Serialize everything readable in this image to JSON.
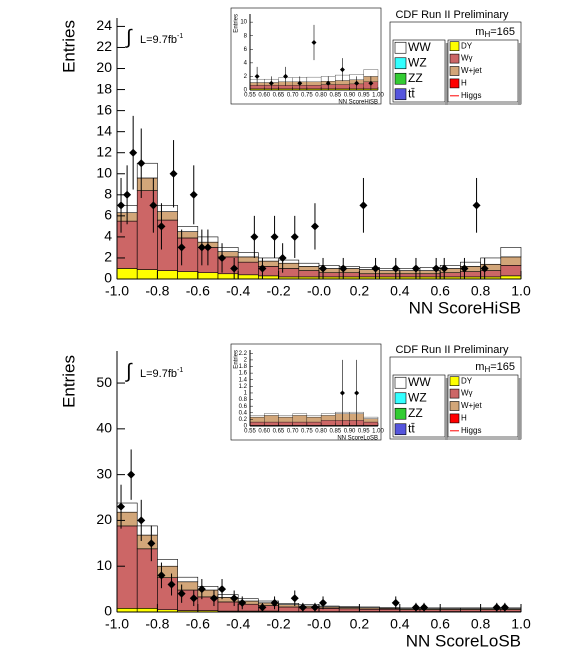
{
  "chart_data": [
    {
      "type": "histogram",
      "xlabel": "NN ScoreHiSB",
      "ylabel": "Entries",
      "header": "CDF Run II Preliminary",
      "mass_label": {
        "symbol": "m",
        "subscript": "H",
        "rest": "=165"
      },
      "lumi_label": {
        "integral": "∫",
        "text": "L=9.7fb",
        "superscript": "-1"
      },
      "xlim": [
        -1,
        1
      ],
      "ylim": [
        0,
        24.8
      ],
      "xticks": [
        {
          "value": -1,
          "label": "-1.0"
        },
        {
          "value": -0.8,
          "label": "-0.8"
        },
        {
          "value": -0.6,
          "label": "-0.6"
        },
        {
          "value": -0.4,
          "label": "-0.4"
        },
        {
          "value": -0.2,
          "label": "-0.2"
        },
        {
          "value": 0,
          "label": "-0.0"
        },
        {
          "value": 0.2,
          "label": "0.2"
        },
        {
          "value": 0.4,
          "label": "0.4"
        },
        {
          "value": 0.6,
          "label": "0.6"
        },
        {
          "value": 0.8,
          "label": "0.8"
        },
        {
          "value": 1,
          "label": "1.0"
        }
      ],
      "yticks": [
        0,
        2,
        4,
        6,
        8,
        10,
        12,
        14,
        16,
        18,
        20,
        22,
        24
      ],
      "bins": [
        -1,
        -0.9,
        -0.8,
        -0.7,
        -0.6,
        -0.5,
        -0.4,
        -0.3,
        -0.2,
        -0.1,
        0,
        0.1,
        0.2,
        0.3,
        0.4,
        0.5,
        0.6,
        0.7,
        0.8,
        0.9,
        1
      ],
      "series": [
        {
          "color": "#ffff00",
          "values": [
            1.0,
            0.9,
            0.8,
            0.7,
            0.6,
            0.5,
            0.4,
            0.3,
            0.2,
            0.2,
            0.2,
            0.2,
            0.2,
            0.2,
            0.2,
            0.2,
            0.2,
            0.2,
            0.2,
            0.3
          ]
        },
        {
          "color": "#cc6666",
          "values": [
            4.5,
            7.5,
            4.8,
            3.2,
            2.4,
            1.6,
            1.2,
            0.9,
            0.8,
            0.6,
            0.4,
            0.4,
            0.3,
            0.3,
            0.3,
            0.3,
            0.4,
            0.5,
            0.6,
            1.0
          ]
        },
        {
          "color": "#d2a679",
          "values": [
            0.8,
            1.2,
            0.8,
            0.6,
            0.5,
            0.5,
            0.5,
            0.5,
            0.5,
            0.4,
            0.4,
            0.4,
            0.4,
            0.3,
            0.3,
            0.3,
            0.4,
            0.5,
            0.6,
            0.8
          ]
        },
        {
          "color": "#ffffff",
          "values": [
            0.7,
            1.4,
            0.6,
            0.5,
            0.5,
            0.4,
            0.4,
            0.3,
            0.3,
            0.3,
            0.3,
            0.2,
            0.2,
            0.2,
            0.2,
            0.3,
            0.3,
            0.4,
            0.6,
            0.9
          ]
        }
      ],
      "points": {
        "x": [
          -0.98,
          -0.95,
          -0.92,
          -0.88,
          -0.82,
          -0.78,
          -0.72,
          -0.68,
          -0.62,
          -0.58,
          -0.55,
          -0.48,
          -0.42,
          -0.32,
          -0.28,
          -0.22,
          -0.18,
          -0.12,
          -0.02,
          0.02,
          0.12,
          0.22,
          0.28,
          0.38,
          0.48,
          0.58,
          0.62,
          0.72,
          0.78,
          0.82
        ],
        "values": [
          7,
          8,
          12,
          11,
          7,
          5,
          10,
          3,
          8,
          3,
          3,
          2,
          1,
          4,
          1,
          4,
          2,
          4,
          5,
          1,
          1,
          7,
          1,
          1,
          1,
          1,
          1,
          1,
          7,
          1
        ],
        "errors": [
          2.6,
          2.8,
          3.5,
          3.3,
          2.6,
          2.2,
          3.2,
          1.7,
          2.8,
          1.7,
          1.7,
          1.4,
          1.0,
          2.0,
          1.0,
          2.0,
          1.4,
          2.0,
          2.2,
          1.0,
          1.0,
          2.6,
          1.0,
          1.0,
          1.0,
          1.0,
          1.0,
          1.0,
          2.6,
          1.0
        ],
        "color": "#000000"
      },
      "legend": [
        [
          {
            "name": "WW",
            "color": "#ffffff"
          },
          {
            "name": "WZ",
            "color": "#33ffff"
          },
          {
            "name": "ZZ",
            "color": "#33cc33"
          },
          {
            "name": "tt̄",
            "color": "#5555dd"
          }
        ],
        [
          {
            "name": "DY",
            "color": "#ffff00"
          },
          {
            "name": "Wγ",
            "color": "#cc6666"
          },
          {
            "name": "W+jet",
            "color": "#d2a679"
          },
          {
            "name": "H",
            "color": "#ff0000"
          },
          {
            "name": "Higgs",
            "color": "#ff0000",
            "style": "line"
          }
        ]
      ]
    },
    {
      "type": "histogram",
      "xlabel": "NN ScoreHiSB",
      "ylabel": "Entries",
      "xlim": [
        0.55,
        1
      ],
      "ylim": [
        0,
        11.2
      ],
      "xticks": [
        0.55,
        {
          "value": 0.6,
          "label": "0.60"
        },
        0.65,
        {
          "value": 0.7,
          "label": "0.70"
        },
        0.75,
        {
          "value": 0.8,
          "label": "0.80"
        },
        0.85,
        {
          "value": 0.9,
          "label": "0.90"
        },
        0.95,
        {
          "value": 1,
          "label": "1.00"
        }
      ],
      "yticks": [
        0,
        2,
        4,
        6,
        8,
        10
      ],
      "bins": [
        0.55,
        0.6,
        0.65,
        0.7,
        0.75,
        0.8,
        0.85,
        0.9,
        0.95,
        1
      ],
      "series": [
        {
          "color": "#ffff00",
          "values": [
            0.2,
            0.2,
            0.2,
            0.2,
            0.2,
            0.2,
            0.2,
            0.2,
            0.2
          ]
        },
        {
          "color": "#cc6666",
          "values": [
            0.5,
            0.5,
            0.5,
            0.5,
            0.5,
            0.6,
            0.6,
            0.7,
            1.0
          ]
        },
        {
          "color": "#d2a679",
          "values": [
            0.4,
            0.4,
            0.5,
            0.5,
            0.5,
            0.5,
            0.6,
            0.6,
            0.8
          ]
        },
        {
          "color": "#ffffff",
          "values": [
            0.5,
            0.5,
            0.6,
            0.6,
            0.7,
            0.7,
            0.8,
            0.8,
            1.0
          ]
        }
      ],
      "points": {
        "x": [
          0.575,
          0.625,
          0.675,
          0.725,
          0.775,
          0.825,
          0.875,
          0.925,
          0.975
        ],
        "values": [
          2,
          1,
          2,
          1,
          7,
          1,
          3,
          1,
          1
        ],
        "errors": [
          1.4,
          1.0,
          1.4,
          1.0,
          2.6,
          1.0,
          1.7,
          1.0,
          1.0
        ],
        "color": "#000000"
      }
    },
    {
      "type": "histogram",
      "xlabel": "NN ScoreLoSB",
      "ylabel": "Entries",
      "header": "CDF Run II Preliminary",
      "mass_label": {
        "symbol": "m",
        "subscript": "H",
        "rest": "=165"
      },
      "lumi_label": {
        "integral": "∫",
        "text": "L=9.7fb",
        "superscript": "-1"
      },
      "xlim": [
        -1,
        1
      ],
      "ylim": [
        0,
        57
      ],
      "xticks": [
        {
          "value": -1,
          "label": "-1.0"
        },
        {
          "value": -0.8,
          "label": "-0.8"
        },
        {
          "value": -0.6,
          "label": "-0.6"
        },
        {
          "value": -0.4,
          "label": "-0.4"
        },
        {
          "value": -0.2,
          "label": "-0.2"
        },
        {
          "value": 0,
          "label": "-0.0"
        },
        {
          "value": 0.2,
          "label": "0.2"
        },
        {
          "value": 0.4,
          "label": "0.4"
        },
        {
          "value": 0.6,
          "label": "0.6"
        },
        {
          "value": 0.8,
          "label": "0.8"
        },
        {
          "value": 1,
          "label": "1.0"
        }
      ],
      "yticks": [
        0,
        10,
        20,
        30,
        40,
        50
      ],
      "bins": [
        -1,
        -0.9,
        -0.8,
        -0.7,
        -0.6,
        -0.5,
        -0.4,
        -0.3,
        -0.2,
        -0.1,
        0,
        0.1,
        0.2,
        0.3,
        0.4,
        0.5,
        0.6,
        0.7,
        0.8,
        0.9,
        1
      ],
      "series": [
        {
          "color": "#ffff00",
          "values": [
            0.8,
            0.8,
            0.5,
            0.3,
            0.3,
            0.2,
            0.2,
            0.2,
            0.1,
            0.1,
            0.1,
            0.1,
            0.1,
            0.1,
            0.1,
            0.1,
            0.1,
            0.1,
            0.1,
            0.1
          ]
        },
        {
          "color": "#cc6666",
          "values": [
            18,
            13,
            7,
            4.5,
            3,
            2,
            1.5,
            1.2,
            1,
            0.8,
            0.7,
            0.6,
            0.5,
            0.5,
            0.4,
            0.4,
            0.4,
            0.4,
            0.4,
            0.4
          ]
        },
        {
          "color": "#d2a679",
          "values": [
            3,
            3,
            2.5,
            1.8,
            1.5,
            1,
            0.7,
            0.6,
            0.5,
            0.4,
            0.3,
            0.3,
            0.3,
            0.2,
            0.2,
            0.2,
            0.2,
            0.2,
            0.2,
            0.2
          ]
        },
        {
          "color": "#ffffff",
          "values": [
            2,
            2,
            1.5,
            1,
            0.8,
            0.6,
            0.5,
            0.4,
            0.3,
            0.3,
            0.2,
            0.2,
            0.2,
            0.2,
            0.2,
            0.2,
            0.2,
            0.2,
            0.2,
            0.2
          ]
        }
      ],
      "points": {
        "x": [
          -0.98,
          -0.93,
          -0.88,
          -0.83,
          -0.78,
          -0.73,
          -0.68,
          -0.62,
          -0.58,
          -0.52,
          -0.48,
          -0.42,
          -0.38,
          -0.28,
          -0.22,
          -0.12,
          -0.08,
          -0.02,
          0.02,
          0.38,
          0.48,
          0.52,
          0.88,
          0.92
        ],
        "values": [
          23,
          30,
          20,
          15,
          8,
          6,
          4,
          3,
          5,
          3,
          5,
          3,
          2,
          1,
          2,
          3,
          1,
          1,
          2,
          2,
          1,
          1,
          1,
          1
        ],
        "errors": [
          4.8,
          5.5,
          4.5,
          3.9,
          2.8,
          2.4,
          2.0,
          1.7,
          2.2,
          1.7,
          2.2,
          1.7,
          1.4,
          1.0,
          1.4,
          1.7,
          1.0,
          1.0,
          1.4,
          1.4,
          1.0,
          1.0,
          1.0,
          1.0
        ],
        "color": "#000000"
      },
      "legend": [
        [
          {
            "name": "WW",
            "color": "#ffffff"
          },
          {
            "name": "WZ",
            "color": "#33ffff"
          },
          {
            "name": "ZZ",
            "color": "#33cc33"
          },
          {
            "name": "tt̄",
            "color": "#5555dd"
          }
        ],
        [
          {
            "name": "DY",
            "color": "#ffff00"
          },
          {
            "name": "Wγ",
            "color": "#cc6666"
          },
          {
            "name": "W+jet",
            "color": "#d2a679"
          },
          {
            "name": "H",
            "color": "#ff0000"
          },
          {
            "name": "Higgs",
            "color": "#ff0000",
            "style": "line"
          }
        ]
      ]
    },
    {
      "type": "histogram",
      "xlabel": "NN ScoreLoSB",
      "ylabel": "Entries",
      "xlim": [
        0.55,
        1
      ],
      "ylim": [
        0,
        2.3
      ],
      "xticks": [
        0.55,
        {
          "value": 0.6,
          "label": "0.60"
        },
        0.65,
        {
          "value": 0.7,
          "label": "0.70"
        },
        0.75,
        {
          "value": 0.8,
          "label": "0.80"
        },
        0.85,
        {
          "value": 0.9,
          "label": "0.90"
        },
        0.95,
        {
          "value": 1,
          "label": "1.00"
        }
      ],
      "yticks": [
        0,
        0.2,
        0.4,
        0.6,
        0.8,
        1,
        1.2,
        1.4,
        1.6,
        1.8,
        2,
        2.2
      ],
      "bins": [
        0.55,
        0.6,
        0.65,
        0.7,
        0.75,
        0.8,
        0.85,
        0.9,
        0.95,
        1
      ],
      "series": [
        {
          "color": "#ffff00",
          "values": [
            0.02,
            0.02,
            0.02,
            0.02,
            0.02,
            0.02,
            0.02,
            0.02,
            0.02
          ]
        },
        {
          "color": "#cc6666",
          "values": [
            0.1,
            0.1,
            0.1,
            0.1,
            0.1,
            0.15,
            0.15,
            0.15,
            0.1
          ]
        },
        {
          "color": "#d2a679",
          "values": [
            0.15,
            0.2,
            0.15,
            0.2,
            0.15,
            0.15,
            0.2,
            0.2,
            0.1
          ]
        },
        {
          "color": "#ffffff",
          "values": [
            0.05,
            0.05,
            0.05,
            0.05,
            0.05,
            0.05,
            0.05,
            0.05,
            0.05
          ]
        }
      ],
      "points": {
        "x": [
          0.875,
          0.925
        ],
        "values": [
          1,
          1
        ],
        "errors": [
          1,
          1
        ],
        "color": "#000000"
      }
    }
  ]
}
